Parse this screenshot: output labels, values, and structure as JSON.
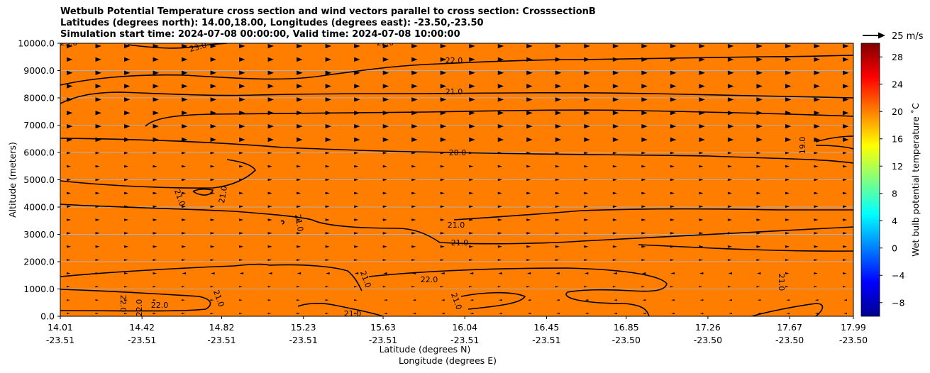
{
  "chart_data": {
    "type": "contourf",
    "title": [
      "Wetbulb Potential Temperature cross section and wind vectors parallel to cross section: CrosssectionB",
      "Latitudes (degrees north): 14.00,18.00, Longitudes (degrees east): -23.50,-23.50",
      "Simulation start time: 2024-07-08 00:00:00, Valid time: 2024-07-08 10:00:00"
    ],
    "xlabel": "Latitude (degrees N)",
    "xlabel2": "Longitude (degrees E)",
    "ylabel": "Altitude (meters)",
    "ylim": [
      0,
      10000
    ],
    "xlim": [
      14.01,
      17.99
    ],
    "x_ticks": [
      {
        "lat": "14.01",
        "lon": "-23.51"
      },
      {
        "lat": "14.42",
        "lon": "-23.51"
      },
      {
        "lat": "14.82",
        "lon": "-23.51"
      },
      {
        "lat": "15.23",
        "lon": "-23.51"
      },
      {
        "lat": "15.63",
        "lon": "-23.51"
      },
      {
        "lat": "16.04",
        "lon": "-23.51"
      },
      {
        "lat": "16.45",
        "lon": "-23.51"
      },
      {
        "lat": "16.85",
        "lon": "-23.50"
      },
      {
        "lat": "17.26",
        "lon": "-23.50"
      },
      {
        "lat": "17.67",
        "lon": "-23.50"
      },
      {
        "lat": "17.99",
        "lon": "-23.50"
      }
    ],
    "y_ticks": [
      "0.0",
      "1000.0",
      "2000.0",
      "3000.0",
      "4000.0",
      "5000.0",
      "6000.0",
      "7000.0",
      "8000.0",
      "9000.0",
      "10000.0"
    ],
    "colorbar": {
      "label": "Wet bulb potential temperature ˚C",
      "range": [
        -10,
        30
      ],
      "ticks": [
        "−8",
        "−4",
        "0",
        "4",
        "8",
        "12",
        "16",
        "20",
        "24",
        "28"
      ],
      "colors": [
        "#00008f",
        "#0000ff",
        "#0080ff",
        "#00ffff",
        "#80ff80",
        "#ffff00",
        "#ff8000",
        "#ff0000",
        "#800000"
      ]
    },
    "quiver_key": "25 m/s",
    "contour_labels": [
      "23.0",
      "23.0",
      "22.0",
      "21.0",
      "20.0",
      "19.0",
      "21.0",
      "21.0",
      "21.0",
      "21.0",
      "21.0",
      "21.0",
      "22.0",
      "22.0",
      "22.0",
      "21.0",
      "21.0",
      "22.0",
      "21.0",
      "21.0",
      "22.0"
    ],
    "contour_levels": [
      19,
      20,
      21,
      22,
      23
    ],
    "field_colors": {
      "t19": "#ff9e00",
      "t20": "#ff8e00",
      "t21": "#ff7e00",
      "t22": "#ff6a00",
      "t23": "#ff5200",
      "terrain": "#000000"
    }
  }
}
